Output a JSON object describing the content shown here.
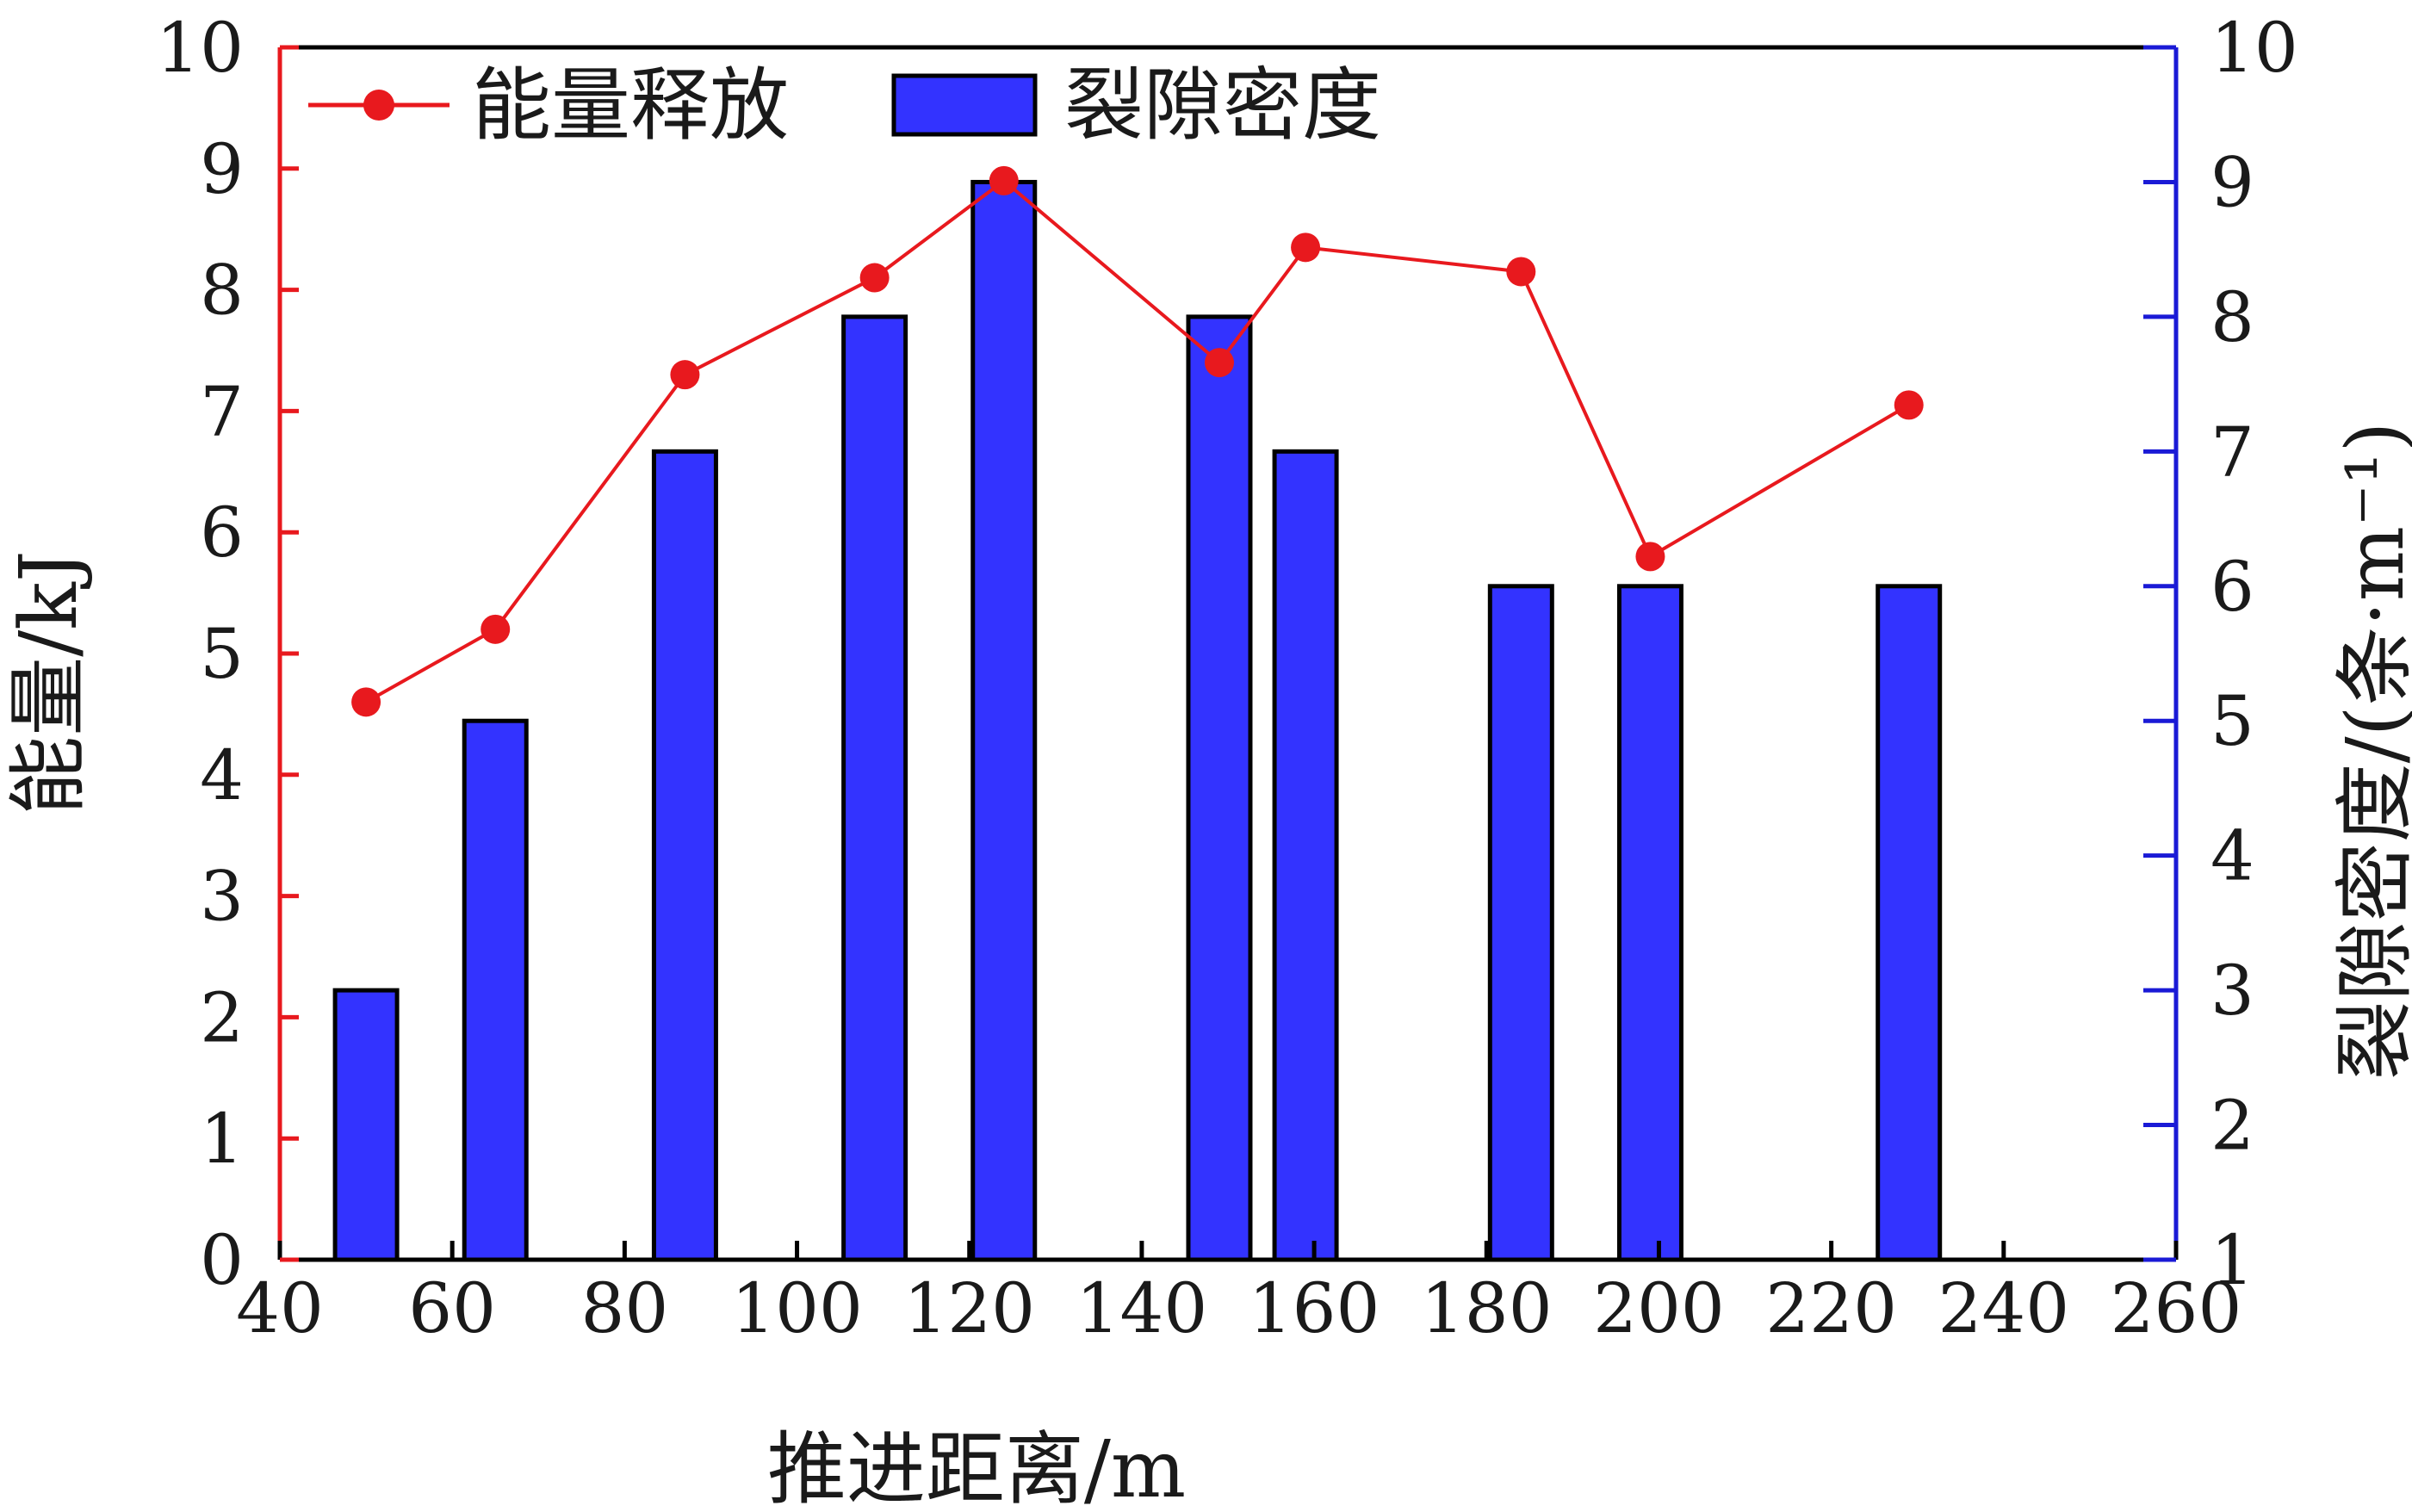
{
  "chart_data": {
    "type": "bar",
    "title": "",
    "xlabel": "推进距离/m",
    "ylabel_left": "能量/kJ",
    "ylabel_right": "裂隙密度/(条·m⁻¹)",
    "xlim": [
      40,
      260
    ],
    "xticks": [
      40,
      60,
      80,
      100,
      120,
      140,
      160,
      180,
      200,
      220,
      240,
      260
    ],
    "ylim_left": [
      0,
      10
    ],
    "yticks_left": [
      0,
      1,
      2,
      3,
      4,
      5,
      6,
      7,
      8,
      9,
      10
    ],
    "ylim_right": [
      1,
      10
    ],
    "yticks_right": [
      1,
      2,
      3,
      4,
      5,
      6,
      7,
      8,
      9,
      10
    ],
    "grid": false,
    "legend_position": "top-left",
    "colors": {
      "bars": "#3333ff",
      "bar_edge": "#000000",
      "line": "#e8191e",
      "left_axis": "#e8191e",
      "right_axis": "#1a1ad6",
      "bottom_axis": "#000000"
    },
    "series": [
      {
        "name": "能量释放",
        "type": "line",
        "axis": "left",
        "x": [
          50,
          65,
          87,
          109,
          124,
          149,
          159,
          184,
          199,
          229
        ],
        "values": [
          4.6,
          5.2,
          7.3,
          8.1,
          8.9,
          7.4,
          8.35,
          8.15,
          5.8,
          7.05
        ]
      },
      {
        "name": "裂隙密度",
        "type": "bar",
        "axis": "right",
        "x": [
          50,
          65,
          87,
          109,
          124,
          149,
          159,
          184,
          199,
          229
        ],
        "values": [
          3,
          5,
          7,
          8,
          9,
          8,
          7,
          6,
          6,
          6
        ]
      }
    ]
  }
}
